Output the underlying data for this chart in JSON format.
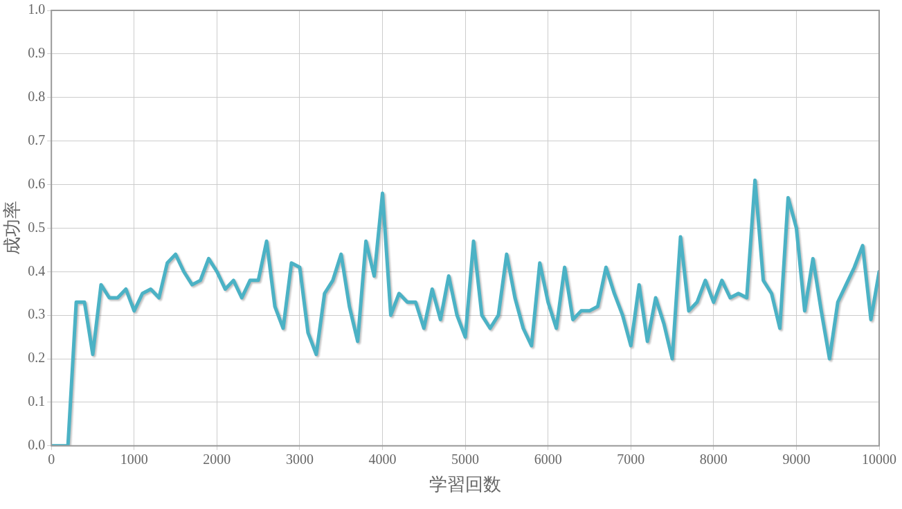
{
  "chart_data": {
    "type": "line",
    "xlabel": "学習回数",
    "ylabel": "成功率",
    "x": [
      0,
      100,
      200,
      300,
      400,
      500,
      600,
      700,
      800,
      900,
      1000,
      1100,
      1200,
      1300,
      1400,
      1500,
      1600,
      1700,
      1800,
      1900,
      2000,
      2100,
      2200,
      2300,
      2400,
      2500,
      2600,
      2700,
      2800,
      2900,
      3000,
      3100,
      3200,
      3300,
      3400,
      3500,
      3600,
      3700,
      3800,
      3900,
      4000,
      4100,
      4200,
      4300,
      4400,
      4500,
      4600,
      4700,
      4800,
      4900,
      5000,
      5100,
      5200,
      5300,
      5400,
      5500,
      5600,
      5700,
      5800,
      5900,
      6000,
      6100,
      6200,
      6300,
      6400,
      6500,
      6600,
      6700,
      6800,
      6900,
      7000,
      7100,
      7200,
      7300,
      7400,
      7500,
      7600,
      7700,
      7800,
      7900,
      8000,
      8100,
      8200,
      8300,
      8400,
      8500,
      8600,
      8700,
      8800,
      8900,
      9000,
      9100,
      9200,
      9300,
      9400,
      9500,
      9600,
      9700,
      9800,
      9900,
      10000
    ],
    "series": [
      {
        "color": "#4bb2c5",
        "values": [
          0,
          0,
          0,
          0.33,
          0.33,
          0.21,
          0.37,
          0.34,
          0.34,
          0.36,
          0.31,
          0.35,
          0.36,
          0.34,
          0.42,
          0.44,
          0.4,
          0.37,
          0.38,
          0.43,
          0.4,
          0.36,
          0.38,
          0.34,
          0.38,
          0.38,
          0.47,
          0.32,
          0.27,
          0.42,
          0.41,
          0.26,
          0.21,
          0.35,
          0.38,
          0.44,
          0.32,
          0.24,
          0.47,
          0.39,
          0.58,
          0.3,
          0.35,
          0.33,
          0.33,
          0.27,
          0.36,
          0.29,
          0.39,
          0.3,
          0.25,
          0.47,
          0.3,
          0.27,
          0.3,
          0.44,
          0.34,
          0.27,
          0.23,
          0.42,
          0.33,
          0.27,
          0.41,
          0.29,
          0.31,
          0.31,
          0.32,
          0.41,
          0.35,
          0.3,
          0.23,
          0.37,
          0.24,
          0.34,
          0.28,
          0.2,
          0.48,
          0.31,
          0.33,
          0.38,
          0.33,
          0.38,
          0.34,
          0.35,
          0.34,
          0.61,
          0.38,
          0.35,
          0.27,
          0.57,
          0.5,
          0.31,
          0.43,
          0.31,
          0.2,
          0.33,
          0.37,
          0.41,
          0.46,
          0.29,
          0.4
        ]
      }
    ],
    "xlim": [
      0,
      10000
    ],
    "xticks": [
      0,
      1000,
      2000,
      3000,
      4000,
      5000,
      6000,
      7000,
      8000,
      9000,
      10000
    ],
    "ylim": [
      0,
      1
    ],
    "yticks": [
      {
        "value": 0,
        "label": "0.0"
      },
      {
        "value": 0.1,
        "label": "0.1"
      },
      {
        "value": 0.2,
        "label": "0.2"
      },
      {
        "value": 0.3,
        "label": "0.3"
      },
      {
        "value": 0.4,
        "label": "0.4"
      },
      {
        "value": 0.5,
        "label": "0.5"
      },
      {
        "value": 0.6,
        "label": "0.6"
      },
      {
        "value": 0.7,
        "label": "0.7"
      },
      {
        "value": 0.8,
        "label": "0.8"
      },
      {
        "value": 0.9,
        "label": "0.9"
      },
      {
        "value": 1,
        "label": "1.0"
      }
    ],
    "grid": true,
    "legend": false,
    "marker": "none",
    "line_style": "solid"
  }
}
